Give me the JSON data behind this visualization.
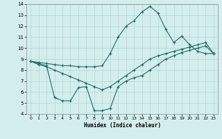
{
  "xlabel": "Humidex (Indice chaleur)",
  "background_color": "#d4eeed",
  "grid_color": "#b0d8d4",
  "line_color": "#1a6b64",
  "xlim": [
    -0.5,
    23.5
  ],
  "ylim": [
    4,
    14
  ],
  "xticks": [
    0,
    1,
    2,
    3,
    4,
    5,
    6,
    7,
    8,
    9,
    10,
    11,
    12,
    13,
    14,
    15,
    16,
    17,
    18,
    19,
    20,
    21,
    22,
    23
  ],
  "yticks": [
    4,
    5,
    6,
    7,
    8,
    9,
    10,
    11,
    12,
    13,
    14
  ],
  "line1_x": [
    0,
    1,
    2,
    3,
    4,
    5,
    6,
    7,
    8,
    9,
    10,
    11,
    12,
    13,
    14,
    15,
    16,
    17,
    18,
    19,
    20,
    21,
    22,
    23
  ],
  "line1_y": [
    8.8,
    8.7,
    8.6,
    8.5,
    8.4,
    8.4,
    8.3,
    8.3,
    8.3,
    8.4,
    9.5,
    11.0,
    12.0,
    12.5,
    13.3,
    13.8,
    13.2,
    11.7,
    10.5,
    11.1,
    10.3,
    9.7,
    9.5,
    9.5
  ],
  "line2_x": [
    0,
    1,
    2,
    3,
    4,
    5,
    6,
    7,
    8,
    9,
    10,
    11,
    12,
    13,
    14,
    15,
    16,
    17,
    18,
    19,
    20,
    21,
    22,
    23
  ],
  "line2_y": [
    8.8,
    8.5,
    8.3,
    8.0,
    7.7,
    7.4,
    7.1,
    6.8,
    6.5,
    6.2,
    6.5,
    7.0,
    7.5,
    8.0,
    8.5,
    9.0,
    9.3,
    9.5,
    9.7,
    9.9,
    10.1,
    10.3,
    10.5,
    9.5
  ],
  "line3_x": [
    0,
    1,
    2,
    3,
    4,
    5,
    6,
    7,
    8,
    9,
    10,
    11,
    12,
    13,
    14,
    15,
    16,
    17,
    18,
    19,
    20,
    21,
    22,
    23
  ],
  "line3_y": [
    8.8,
    8.6,
    8.4,
    5.5,
    5.2,
    5.2,
    6.4,
    6.5,
    4.3,
    4.3,
    4.5,
    6.5,
    7.0,
    7.3,
    7.5,
    8.0,
    8.5,
    9.0,
    9.3,
    9.6,
    9.8,
    10.0,
    10.2,
    9.5
  ]
}
